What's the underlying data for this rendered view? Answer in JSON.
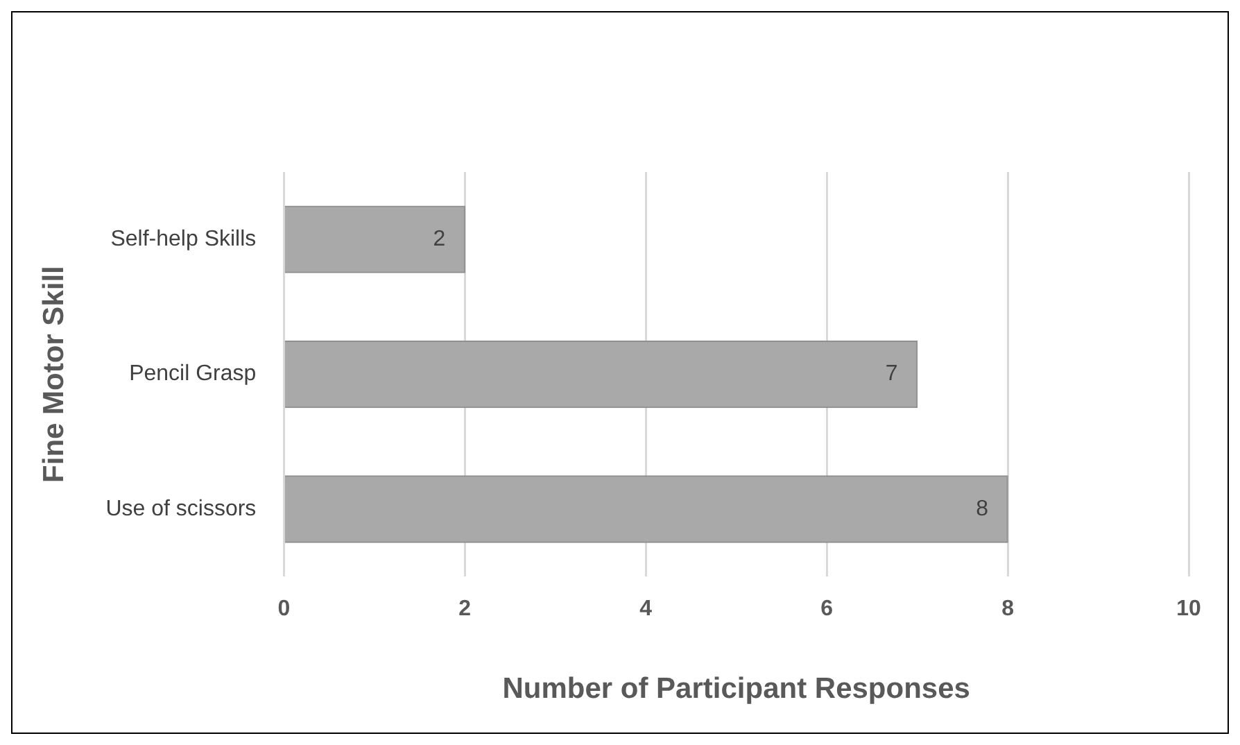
{
  "chart_data": {
    "type": "bar",
    "orientation": "horizontal",
    "xlabel": "Number of Participant Responses",
    "ylabel": "Fine Motor Skill",
    "categories": [
      "Self-help Skills",
      "Pencil Grasp",
      "Use of scissors"
    ],
    "values": [
      2,
      7,
      8
    ],
    "color": "#a9a9a9",
    "xlim": [
      0,
      10
    ],
    "xticks": [
      0,
      2,
      4,
      6,
      8,
      10
    ],
    "grid": "x",
    "data_labels": true,
    "legend": false
  }
}
